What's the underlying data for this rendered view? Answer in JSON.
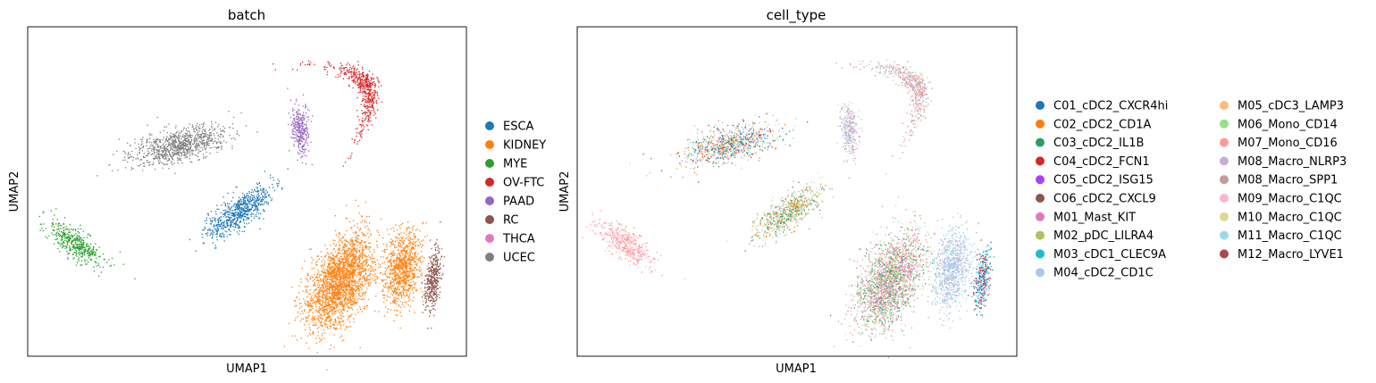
{
  "chart_data": [
    {
      "type": "scatter",
      "title": "batch",
      "xlabel": "UMAP1",
      "ylabel": "UMAP2",
      "xticks": false,
      "yticks": false,
      "grid": false,
      "legend_placement": "right",
      "legend": [
        {
          "label": "ESCA",
          "color": "#1f77b4"
        },
        {
          "label": "KIDNEY",
          "color": "#ff7f0e"
        },
        {
          "label": "MYE",
          "color": "#2ca02c"
        },
        {
          "label": "OV-FTC",
          "color": "#d62728"
        },
        {
          "label": "PAAD",
          "color": "#9467bd"
        },
        {
          "label": "RC",
          "color": "#8c564b"
        },
        {
          "label": "THCA",
          "color": "#e377c2"
        },
        {
          "label": "UCEC",
          "color": "#7f7f7f"
        }
      ]
    },
    {
      "type": "scatter",
      "title": "cell_type",
      "xlabel": "UMAP1",
      "ylabel": "UMAP2",
      "xticks": false,
      "yticks": false,
      "grid": false,
      "legend_placement": "right",
      "legend_columns": 2,
      "legend": [
        {
          "label": "C01_cDC2_CXCR4hi",
          "color": "#1f77b4"
        },
        {
          "label": "C02_cDC2_CD1A",
          "color": "#ff7f0e"
        },
        {
          "label": "C03_cDC2_IL1B",
          "color": "#279e68"
        },
        {
          "label": "C04_cDC2_FCN1",
          "color": "#d62728"
        },
        {
          "label": "C05_cDC2_ISG15",
          "color": "#aa40fc"
        },
        {
          "label": "C06_cDC2_CXCL9",
          "color": "#8c564b"
        },
        {
          "label": "M01_Mast_KIT",
          "color": "#e377c2"
        },
        {
          "label": "M02_pDC_LILRA4",
          "color": "#b5bd61"
        },
        {
          "label": "M03_cDC1_CLEC9A",
          "color": "#17becf"
        },
        {
          "label": "M04_cDC2_CD1C",
          "color": "#aec7e8"
        },
        {
          "label": "M05_cDC3_LAMP3",
          "color": "#ffbb78"
        },
        {
          "label": "M06_Mono_CD14",
          "color": "#98df8a"
        },
        {
          "label": "M07_Mono_CD16",
          "color": "#ff9896"
        },
        {
          "label": "M08_Macro_NLRP3",
          "color": "#c5b0d5"
        },
        {
          "label": "M08_Macro_SPP1",
          "color": "#c49c94"
        },
        {
          "label": "M09_Macro_C1QC",
          "color": "#f7b6d2"
        },
        {
          "label": "M10_Macro_C1QC",
          "color": "#dbdb8d"
        },
        {
          "label": "M11_Macro_C1QC",
          "color": "#9edae5"
        },
        {
          "label": "M12_Macro_LYVE1",
          "color": "#ad494a"
        }
      ]
    }
  ]
}
